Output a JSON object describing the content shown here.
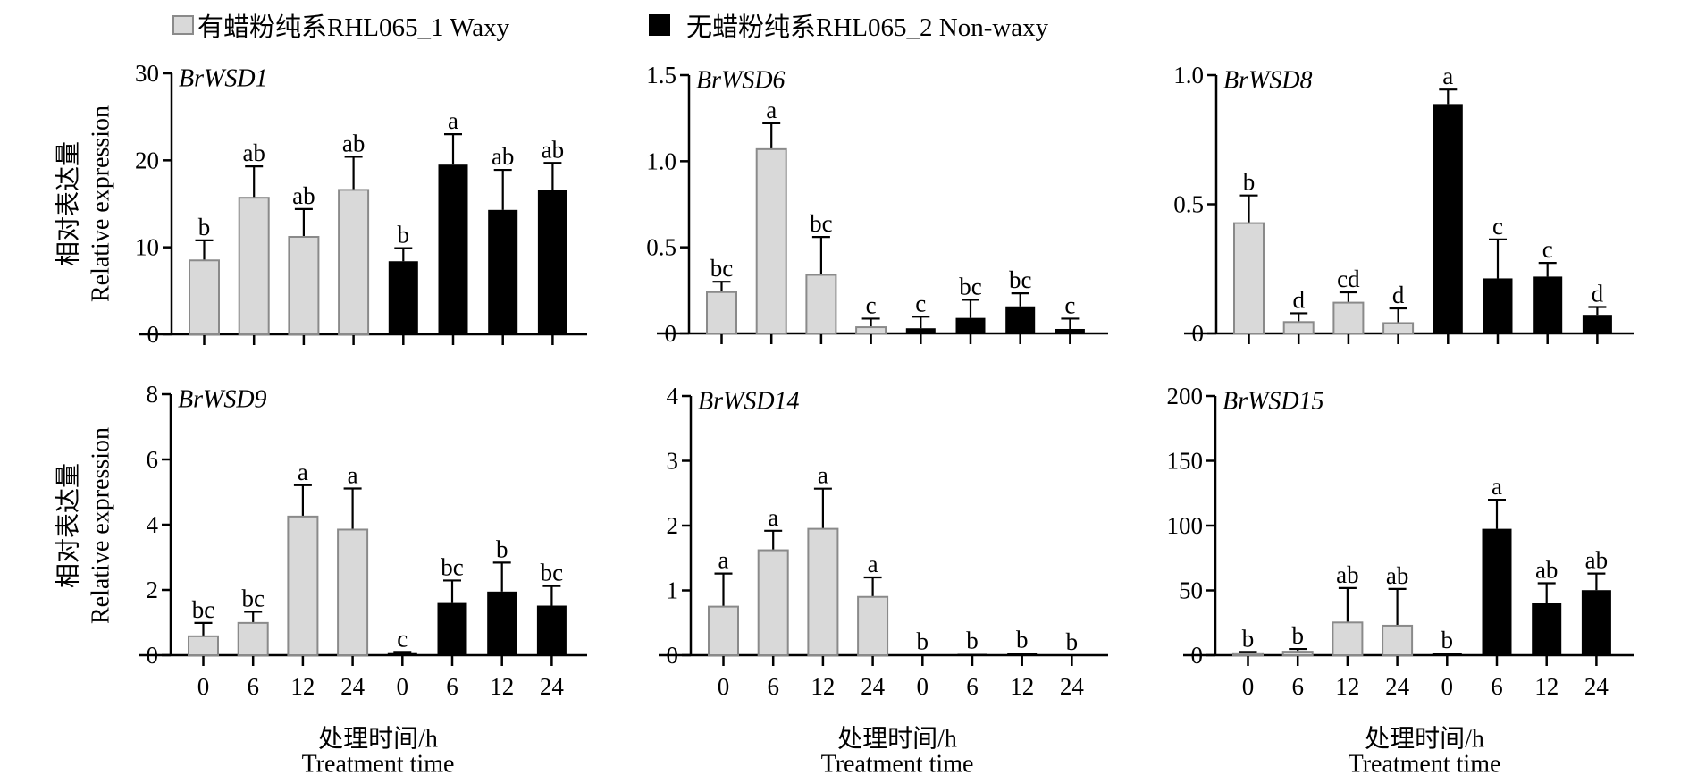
{
  "legend": {
    "waxy_label": "有蜡粉纯系RHL065_1 Waxy",
    "nonwaxy_label": "无蜡粉纯系RHL065_2 Non-waxy"
  },
  "colors": {
    "waxy_fill": "#d9d9d9",
    "waxy_stroke": "#8a8a8a",
    "nonwaxy_fill": "#000000"
  },
  "ylabel_cn": "相对表达量",
  "ylabel_en": "Relative expression",
  "xlabel_cn": "处理时间/h",
  "xlabel_en": "Treatment time",
  "chart_data": [
    {
      "type": "bar",
      "title": "BrWSD1",
      "categories": [
        "0",
        "6",
        "12",
        "24",
        "0",
        "6",
        "12",
        "24"
      ],
      "groups": [
        "Waxy",
        "Waxy",
        "Waxy",
        "Waxy",
        "Non-waxy",
        "Non-waxy",
        "Non-waxy",
        "Non-waxy"
      ],
      "values": [
        8.5,
        15.7,
        11.2,
        16.6,
        8.4,
        19.5,
        14.3,
        16.6
      ],
      "error_upper": [
        10.8,
        19.3,
        14.4,
        20.4,
        9.9,
        23.0,
        18.9,
        19.7
      ],
      "significance": [
        "b",
        "ab",
        "ab",
        "ab",
        "b",
        "a",
        "ab",
        "ab"
      ],
      "ylim": [
        0,
        30
      ],
      "yticks": [
        0,
        10,
        20,
        30
      ],
      "ytick_labels": [
        "0",
        "10",
        "20",
        "30"
      ]
    },
    {
      "type": "bar",
      "title": "BrWSD6",
      "categories": [
        "0",
        "6",
        "12",
        "24",
        "0",
        "6",
        "12",
        "24"
      ],
      "groups": [
        "Waxy",
        "Waxy",
        "Waxy",
        "Waxy",
        "Non-waxy",
        "Non-waxy",
        "Non-waxy",
        "Non-waxy"
      ],
      "values": [
        0.24,
        1.07,
        0.34,
        0.036,
        0.03,
        0.09,
        0.157,
        0.026
      ],
      "error_upper": [
        0.3,
        1.22,
        0.56,
        0.086,
        0.097,
        0.195,
        0.233,
        0.086
      ],
      "significance": [
        "bc",
        "a",
        "bc",
        "c",
        "c",
        "bc",
        "bc",
        "c"
      ],
      "ylim": [
        0,
        1.5
      ],
      "yticks": [
        0,
        0.5,
        1.0,
        1.5
      ],
      "ytick_labels": [
        "0",
        "0.5",
        "1.0",
        "1.5"
      ]
    },
    {
      "type": "bar",
      "title": "BrWSD8",
      "categories": [
        "0",
        "6",
        "12",
        "24",
        "0",
        "6",
        "12",
        "24"
      ],
      "groups": [
        "Waxy",
        "Waxy",
        "Waxy",
        "Waxy",
        "Non-waxy",
        "Non-waxy",
        "Non-waxy",
        "Non-waxy"
      ],
      "values": [
        0.427,
        0.044,
        0.119,
        0.04,
        0.888,
        0.213,
        0.22,
        0.072
      ],
      "error_upper": [
        0.534,
        0.078,
        0.159,
        0.097,
        0.944,
        0.364,
        0.273,
        0.102
      ],
      "significance": [
        "b",
        "d",
        "cd",
        "d",
        "a",
        "c",
        "c",
        "d"
      ],
      "ylim": [
        0,
        1.0
      ],
      "yticks": [
        0,
        0.5,
        1.0
      ],
      "ytick_labels": [
        "0",
        "0.5",
        "1.0"
      ]
    },
    {
      "type": "bar",
      "title": "BrWSD9",
      "categories": [
        "0",
        "6",
        "12",
        "24",
        "0",
        "6",
        "12",
        "24"
      ],
      "groups": [
        "Waxy",
        "Waxy",
        "Waxy",
        "Waxy",
        "Non-waxy",
        "Non-waxy",
        "Non-waxy",
        "Non-waxy"
      ],
      "values": [
        0.58,
        0.99,
        4.25,
        3.85,
        0.09,
        1.6,
        1.95,
        1.52
      ],
      "error_upper": [
        0.99,
        1.33,
        5.21,
        5.11,
        0.1,
        2.29,
        2.84,
        2.12
      ],
      "significance": [
        "bc",
        "bc",
        "a",
        "a",
        "c",
        "bc",
        "b",
        "bc"
      ],
      "ylim": [
        0,
        8
      ],
      "yticks": [
        0,
        2,
        4,
        6,
        8
      ],
      "ytick_labels": [
        "0",
        "2",
        "4",
        "6",
        "8"
      ]
    },
    {
      "type": "bar",
      "title": "BrWSD14",
      "categories": [
        "0",
        "6",
        "12",
        "24",
        "0",
        "6",
        "12",
        "24"
      ],
      "groups": [
        "Waxy",
        "Waxy",
        "Waxy",
        "Waxy",
        "Non-waxy",
        "Non-waxy",
        "Non-waxy",
        "Non-waxy"
      ],
      "values": [
        0.75,
        1.62,
        1.95,
        0.9,
        0.005,
        0.02,
        0.035,
        0.003
      ],
      "error_upper": [
        1.26,
        1.92,
        2.57,
        1.2,
        0.005,
        0.02,
        0.035,
        0.003
      ],
      "significance": [
        "a",
        "a",
        "a",
        "a",
        "b",
        "b",
        "b",
        "b"
      ],
      "ylim": [
        0,
        4
      ],
      "yticks": [
        0,
        1,
        2,
        3,
        4
      ],
      "ytick_labels": [
        "0",
        "1",
        "2",
        "3",
        "4"
      ]
    },
    {
      "type": "bar",
      "title": "BrWSD15",
      "categories": [
        "0",
        "6",
        "12",
        "24",
        "0",
        "6",
        "12",
        "24"
      ],
      "groups": [
        "Waxy",
        "Waxy",
        "Waxy",
        "Waxy",
        "Non-waxy",
        "Non-waxy",
        "Non-waxy",
        "Non-waxy"
      ],
      "values": [
        1.5,
        2.7,
        25.3,
        22.8,
        1.5,
        97.5,
        40.0,
        50.2
      ],
      "error_upper": [
        2.5,
        4.8,
        51.8,
        51.1,
        1.5,
        119.9,
        55.5,
        63.0
      ],
      "significance": [
        "b",
        "b",
        "ab",
        "ab",
        "b",
        "a",
        "ab",
        "ab"
      ],
      "ylim": [
        0,
        200
      ],
      "yticks": [
        0,
        50,
        100,
        150,
        200
      ],
      "ytick_labels": [
        "0",
        "50",
        "100",
        "150",
        "200"
      ]
    }
  ]
}
